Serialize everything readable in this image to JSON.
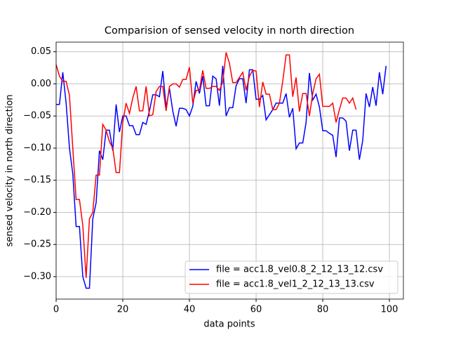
{
  "chart_data": {
    "type": "line",
    "title": "Comparision of sensed velocity in north direction",
    "x_label": "data points",
    "y_label": "sensed velocity in north direction",
    "xlim": [
      0,
      104.2
    ],
    "ylim": [
      -0.335,
      0.065
    ],
    "xticks": [
      0,
      20,
      40,
      60,
      80,
      100
    ],
    "yticks": [
      {
        "value": 0.05,
        "label": "0.05"
      },
      {
        "value": 0.0,
        "label": "0.00"
      },
      {
        "value": -0.05,
        "label": "−0.05"
      },
      {
        "value": -0.1,
        "label": "−0.10"
      },
      {
        "value": -0.15,
        "label": "−0.15"
      },
      {
        "value": -0.2,
        "label": "−0.20"
      },
      {
        "value": -0.25,
        "label": "−0.25"
      },
      {
        "value": -0.3,
        "label": "−0.30"
      }
    ],
    "grid": true,
    "legend": "lower right",
    "series": [
      {
        "name": "file = acc1.8_vel0.8_2_12_13_12.csv",
        "color": "#0000ff",
        "x": [
          0,
          1,
          2,
          3,
          4,
          5,
          6,
          7,
          8,
          9,
          10,
          11,
          12,
          13,
          14,
          15,
          16,
          17,
          18,
          19,
          20,
          21,
          22,
          23,
          24,
          25,
          26,
          27,
          28,
          29,
          30,
          31,
          32,
          33,
          34,
          35,
          36,
          37,
          38,
          39,
          40,
          41,
          42,
          43,
          44,
          45,
          46,
          47,
          48,
          49,
          50,
          51,
          52,
          53,
          54,
          55,
          56,
          57,
          58,
          59,
          60,
          61,
          62,
          63,
          64,
          65,
          66,
          67,
          68,
          69,
          70,
          71,
          72,
          73,
          74,
          75,
          76,
          77,
          78,
          79,
          80,
          81,
          82,
          83,
          84,
          85,
          86,
          87,
          88,
          89,
          90,
          91,
          92,
          93,
          94,
          95,
          96,
          97,
          98,
          99
        ],
        "values": [
          -0.032,
          -0.032,
          0.018,
          -0.03,
          -0.1,
          -0.14,
          -0.222,
          -0.222,
          -0.3,
          -0.318,
          -0.318,
          -0.21,
          -0.185,
          -0.104,
          -0.118,
          -0.072,
          -0.072,
          -0.104,
          -0.032,
          -0.075,
          -0.05,
          -0.05,
          -0.065,
          -0.065,
          -0.079,
          -0.079,
          -0.06,
          -0.063,
          -0.042,
          -0.017,
          -0.017,
          -0.02,
          0.02,
          -0.037,
          -0.007,
          -0.042,
          -0.066,
          -0.038,
          -0.038,
          -0.04,
          -0.05,
          -0.035,
          0.004,
          -0.015,
          0.012,
          -0.034,
          -0.034,
          0.012,
          0.008,
          -0.034,
          0.028,
          -0.05,
          -0.037,
          -0.037,
          -0.003,
          0.008,
          0.008,
          -0.03,
          0.022,
          0.022,
          -0.024,
          -0.024,
          -0.018,
          -0.056,
          -0.048,
          -0.04,
          -0.03,
          -0.03,
          -0.03,
          -0.015,
          -0.052,
          -0.038,
          -0.101,
          -0.092,
          -0.092,
          -0.06,
          0.017,
          -0.025,
          -0.016,
          -0.036,
          -0.073,
          -0.073,
          -0.077,
          -0.08,
          -0.114,
          -0.053,
          -0.053,
          -0.058,
          -0.104,
          -0.072,
          -0.072,
          -0.118,
          -0.088,
          -0.015,
          -0.036,
          -0.005,
          -0.034,
          0.018,
          -0.016,
          0.028
        ]
      },
      {
        "name": "file = acc1.8_vel1_2_12_13_13.csv",
        "color": "#ff0000",
        "x": [
          0,
          1,
          2,
          3,
          4,
          5,
          6,
          7,
          8,
          9,
          10,
          11,
          12,
          13,
          14,
          15,
          16,
          17,
          18,
          19,
          20,
          21,
          22,
          23,
          24,
          25,
          26,
          27,
          28,
          29,
          30,
          31,
          32,
          33,
          34,
          35,
          36,
          37,
          38,
          39,
          40,
          41,
          42,
          43,
          44,
          45,
          46,
          47,
          48,
          49,
          50,
          51,
          52,
          53,
          54,
          55,
          56,
          57,
          58,
          59,
          60,
          61,
          62,
          63,
          64,
          65,
          66,
          67,
          68,
          69,
          70,
          71,
          72,
          73,
          74,
          75,
          76,
          77,
          78,
          79,
          80,
          81,
          82,
          83,
          84,
          85,
          86,
          87,
          88,
          89,
          90
        ],
        "values": [
          0.03,
          0.012,
          0.004,
          0.004,
          -0.018,
          -0.1,
          -0.18,
          -0.18,
          -0.22,
          -0.302,
          -0.21,
          -0.2,
          -0.142,
          -0.142,
          -0.063,
          -0.072,
          -0.09,
          -0.1,
          -0.138,
          -0.138,
          -0.06,
          -0.03,
          -0.046,
          -0.022,
          -0.004,
          -0.042,
          -0.042,
          -0.004,
          -0.05,
          -0.048,
          -0.012,
          -0.004,
          -0.004,
          -0.042,
          -0.004,
          0.0,
          0.0,
          -0.005,
          0.007,
          0.007,
          0.026,
          -0.03,
          -0.01,
          -0.01,
          0.021,
          -0.007,
          -0.007,
          -0.004,
          -0.004,
          -0.01,
          0.003,
          0.049,
          0.032,
          0.002,
          0.002,
          0.01,
          0.018,
          -0.01,
          0.012,
          0.021,
          0.02,
          -0.036,
          0.003,
          -0.016,
          -0.016,
          -0.04,
          -0.04,
          -0.03,
          0.004,
          0.045,
          0.045,
          -0.02,
          0.01,
          -0.043,
          -0.015,
          -0.015,
          -0.05,
          -0.015,
          0.008,
          0.015,
          -0.035,
          -0.035,
          -0.035,
          -0.03,
          -0.06,
          -0.04,
          -0.022,
          -0.022,
          -0.03,
          -0.022,
          -0.04
        ]
      }
    ]
  }
}
